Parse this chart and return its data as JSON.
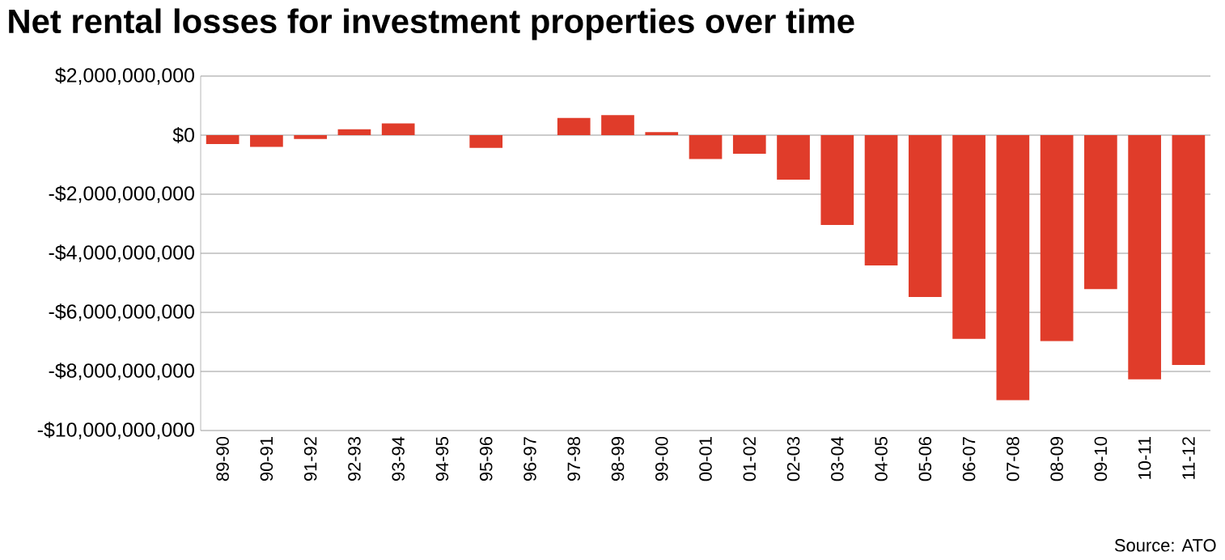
{
  "chart_data": {
    "type": "bar",
    "title": "Net rental losses for investment properties over time",
    "categories": [
      "89-90",
      "90-91",
      "91-92",
      "92-93",
      "93-94",
      "94-95",
      "95-96",
      "96-97",
      "97-98",
      "98-99",
      "99-00",
      "00-01",
      "01-02",
      "02-03",
      "03-04",
      "04-05",
      "05-06",
      "06-07",
      "07-08",
      "08-09",
      "09-10",
      "10-11",
      "11-12"
    ],
    "values": [
      -300000000,
      -400000000,
      -130000000,
      200000000,
      400000000,
      0,
      -430000000,
      0,
      580000000,
      680000000,
      100000000,
      -810000000,
      -630000000,
      -1510000000,
      -3040000000,
      -4410000000,
      -5480000000,
      -6900000000,
      -8970000000,
      -6970000000,
      -5210000000,
      -8270000000,
      -7780000000
    ],
    "color": "#e03c2a",
    "ylim": [
      -10000000000,
      2000000000
    ],
    "yticks": [
      {
        "value": 2000000000,
        "label": "$2,000,000,000"
      },
      {
        "value": 0,
        "label": "$0"
      },
      {
        "value": -2000000000,
        "label": "-$2,000,000,000"
      },
      {
        "value": -4000000000,
        "label": "-$4,000,000,000"
      },
      {
        "value": -6000000000,
        "label": "-$6,000,000,000"
      },
      {
        "value": -8000000000,
        "label": "-$8,000,000,000"
      },
      {
        "value": -10000000000,
        "label": "-$10,000,000,000"
      }
    ],
    "grid": "y",
    "annotations": [
      "Source: ATO"
    ]
  }
}
